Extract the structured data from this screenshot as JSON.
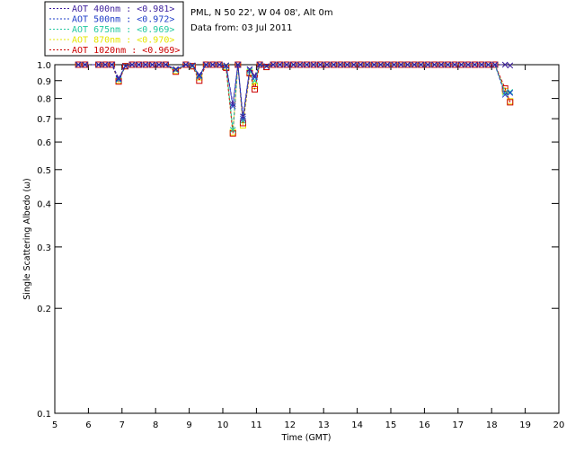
{
  "chart_data": {
    "type": "scatter",
    "title": "",
    "xlabel": "Time (GMT)",
    "ylabel": "Single Scattering Albedo (ω)",
    "xlim": [
      5,
      20
    ],
    "ylim": [
      0.1,
      1.0
    ],
    "yscale": "log",
    "grid": false,
    "x_ticks": [
      "5",
      "6",
      "7",
      "8",
      "9",
      "10",
      "11",
      "12",
      "13",
      "14",
      "15",
      "16",
      "17",
      "18",
      "19",
      "20"
    ],
    "y_ticks": [
      "0.1",
      "0.2",
      "0.3",
      "0.4",
      "0.5",
      "0.6",
      "0.7",
      "0.8",
      "0.9",
      "1.0"
    ],
    "legend_position": "top-left outside",
    "legend": [
      {
        "label": "AOT  400nm : ",
        "value": "<0.981>",
        "color": "#3c1e9c"
      },
      {
        "label": "AOT  500nm : ",
        "value": "<0.972>",
        "color": "#1e3cc8"
      },
      {
        "label": "AOT  675nm : ",
        "value": "<0.969>",
        "color": "#22c8a0"
      },
      {
        "label": "AOT  870nm : ",
        "value": "<0.970>",
        "color": "#e6e600"
      },
      {
        "label": "AOT 1020nm : ",
        "value": "<0.969>",
        "color": "#cc0000"
      }
    ],
    "info": {
      "location": "PML, N 50 22', W 04 08', Alt 0m",
      "date": "Data from: 03 Jul 2011"
    },
    "x": [
      5.7,
      5.9,
      6.3,
      6.5,
      6.7,
      6.9,
      7.1,
      7.3,
      7.5,
      7.7,
      7.9,
      8.1,
      8.3,
      8.6,
      8.9,
      9.1,
      9.3,
      9.5,
      9.7,
      9.9,
      10.1,
      10.3,
      10.45,
      10.6,
      10.8,
      10.95,
      11.1,
      11.3,
      11.5,
      11.7,
      11.9,
      12.1,
      12.3,
      12.5,
      12.7,
      12.9,
      13.1,
      13.3,
      13.5,
      13.7,
      13.9,
      14.1,
      14.3,
      14.5,
      14.7,
      14.9,
      15.1,
      15.3,
      15.5,
      15.7,
      15.9,
      16.1,
      16.3,
      16.5,
      16.7,
      16.9,
      17.1,
      17.3,
      17.5,
      17.7,
      17.9,
      18.1,
      18.4,
      18.55
    ],
    "series": [
      {
        "name": "AOT 400nm",
        "marker": "x",
        "values": [
          1.0,
          1.0,
          1.0,
          1.0,
          1.0,
          0.915,
          0.99,
          1.0,
          1.0,
          1.0,
          1.0,
          1.0,
          1.0,
          0.97,
          1.0,
          0.995,
          0.935,
          1.0,
          1.0,
          1.0,
          0.995,
          0.77,
          1.0,
          0.71,
          0.97,
          0.93,
          1.0,
          0.99,
          1.0,
          1.0,
          1.0,
          1.0,
          1.0,
          1.0,
          1.0,
          1.0,
          1.0,
          1.0,
          1.0,
          1.0,
          1.0,
          1.0,
          1.0,
          1.0,
          1.0,
          1.0,
          1.0,
          1.0,
          1.0,
          1.0,
          1.0,
          1.0,
          1.0,
          1.0,
          1.0,
          1.0,
          1.0,
          1.0,
          1.0,
          1.0,
          1.0,
          1.0,
          1.0,
          0.995
        ]
      },
      {
        "name": "AOT 500nm",
        "marker": "x",
        "values": [
          1.0,
          1.0,
          1.0,
          1.0,
          1.0,
          0.91,
          0.99,
          1.0,
          1.0,
          1.0,
          1.0,
          1.0,
          1.0,
          0.97,
          1.0,
          0.995,
          0.93,
          1.0,
          1.0,
          1.0,
          0.995,
          0.76,
          1.0,
          0.7,
          0.97,
          0.92,
          1.0,
          0.99,
          1.0,
          1.0,
          1.0,
          1.0,
          1.0,
          1.0,
          1.0,
          1.0,
          1.0,
          1.0,
          1.0,
          1.0,
          1.0,
          1.0,
          1.0,
          1.0,
          1.0,
          1.0,
          1.0,
          1.0,
          1.0,
          1.0,
          1.0,
          1.0,
          1.0,
          1.0,
          1.0,
          1.0,
          1.0,
          1.0,
          1.0,
          1.0,
          1.0,
          1.0,
          0.82,
          0.83
        ]
      },
      {
        "name": "AOT 675nm",
        "marker": "x",
        "values": [
          1.0,
          1.0,
          1.0,
          1.0,
          1.0,
          0.905,
          0.99,
          1.0,
          1.0,
          1.0,
          1.0,
          1.0,
          1.0,
          0.965,
          1.0,
          0.99,
          0.925,
          1.0,
          1.0,
          1.0,
          0.99,
          0.65,
          1.0,
          0.69,
          0.96,
          0.9,
          1.0,
          0.99,
          1.0,
          1.0,
          1.0,
          1.0,
          1.0,
          1.0,
          1.0,
          1.0,
          1.0,
          1.0,
          1.0,
          1.0,
          1.0,
          1.0,
          1.0,
          1.0,
          1.0,
          1.0,
          1.0,
          1.0,
          1.0,
          1.0,
          1.0,
          1.0,
          1.0,
          1.0,
          1.0,
          1.0,
          1.0,
          1.0,
          1.0,
          1.0,
          1.0,
          1.0,
          0.83,
          0.835
        ]
      },
      {
        "name": "AOT 870nm",
        "marker": "square",
        "values": [
          1.0,
          1.0,
          1.0,
          1.0,
          1.0,
          0.9,
          0.99,
          1.0,
          1.0,
          1.0,
          1.0,
          1.0,
          1.0,
          0.96,
          1.0,
          0.99,
          0.92,
          1.0,
          1.0,
          1.0,
          0.985,
          0.64,
          1.0,
          0.67,
          0.95,
          0.87,
          1.0,
          0.985,
          1.0,
          1.0,
          1.0,
          1.0,
          1.0,
          1.0,
          1.0,
          1.0,
          1.0,
          1.0,
          1.0,
          1.0,
          1.0,
          1.0,
          1.0,
          1.0,
          1.0,
          1.0,
          1.0,
          1.0,
          1.0,
          1.0,
          1.0,
          1.0,
          1.0,
          1.0,
          1.0,
          1.0,
          1.0,
          1.0,
          1.0,
          1.0,
          1.0,
          1.0,
          0.84,
          0.785
        ]
      },
      {
        "name": "AOT 1020nm",
        "marker": "square",
        "values": [
          1.0,
          1.0,
          1.0,
          1.0,
          1.0,
          0.895,
          0.99,
          1.0,
          1.0,
          1.0,
          1.0,
          1.0,
          1.0,
          0.955,
          1.0,
          0.99,
          0.9,
          1.0,
          1.0,
          1.0,
          0.98,
          0.635,
          1.0,
          0.68,
          0.945,
          0.85,
          1.0,
          0.985,
          1.0,
          1.0,
          1.0,
          1.0,
          1.0,
          1.0,
          1.0,
          1.0,
          1.0,
          1.0,
          1.0,
          1.0,
          1.0,
          1.0,
          1.0,
          1.0,
          1.0,
          1.0,
          1.0,
          1.0,
          1.0,
          1.0,
          1.0,
          1.0,
          1.0,
          1.0,
          1.0,
          1.0,
          1.0,
          1.0,
          1.0,
          1.0,
          1.0,
          1.0,
          0.855,
          0.78
        ]
      }
    ]
  }
}
